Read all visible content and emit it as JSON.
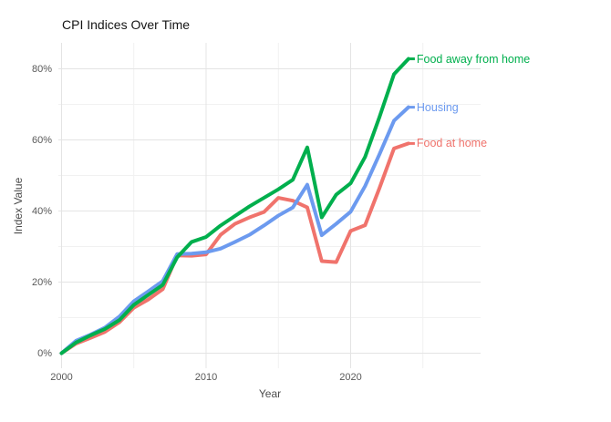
{
  "chart_data": {
    "type": "line",
    "title": "CPI Indices Over Time",
    "xlabel": "Year",
    "ylabel": "Index Value",
    "grid": true,
    "legend_position": "labels-at-line-ends",
    "xlim": [
      1999.8,
      2029
    ],
    "ylim": [
      -4.2,
      87.3
    ],
    "x_ticks": [
      2000,
      2010,
      2020
    ],
    "x_tick_labels": [
      "2000",
      "2010",
      "2020"
    ],
    "x_minor_ticks": [
      2005,
      2015,
      2025
    ],
    "y_ticks": [
      0,
      20,
      40,
      60,
      80
    ],
    "y_tick_labels": [
      "0%",
      "20%",
      "40%",
      "60%",
      "80%"
    ],
    "y_minor_ticks": [
      10,
      30,
      50,
      70
    ],
    "x": [
      2000,
      2001,
      2002,
      2003,
      2004,
      2005,
      2006,
      2007,
      2008,
      2009,
      2010,
      2011,
      2012,
      2013,
      2014,
      2015,
      2016,
      2017,
      2018,
      2019,
      2020,
      2021,
      2022,
      2023,
      2024
    ],
    "series": [
      {
        "name": "Food away from home",
        "color": "#00AF4D",
        "values": [
          0,
          3.0,
          5.0,
          6.8,
          9.3,
          13.6,
          16.4,
          19.2,
          27.0,
          31.3,
          32.7,
          35.9,
          38.6,
          41.3,
          43.7,
          46.1,
          48.8,
          57.9,
          38.2,
          44.6,
          47.8,
          55.2,
          66.5,
          78.5,
          82.8
        ]
      },
      {
        "name": "Housing",
        "color": "#6C9AEF",
        "values": [
          0,
          3.5,
          5.2,
          7.2,
          10.3,
          14.6,
          17.4,
          20.3,
          27.9,
          28.0,
          28.4,
          29.4,
          31.3,
          33.3,
          35.9,
          38.7,
          41.0,
          47.4,
          33.2,
          36.4,
          39.8,
          47.0,
          56.0,
          65.4,
          69.2
        ]
      },
      {
        "name": "Food at home",
        "color": "#F0736C",
        "values": [
          0,
          2.7,
          4.3,
          6.0,
          8.7,
          12.8,
          15.1,
          18.0,
          27.5,
          27.4,
          27.8,
          33.3,
          36.4,
          38.2,
          39.7,
          43.7,
          42.9,
          41.0,
          25.9,
          25.6,
          34.4,
          36.0,
          46.5,
          57.6,
          59.0
        ]
      }
    ]
  }
}
